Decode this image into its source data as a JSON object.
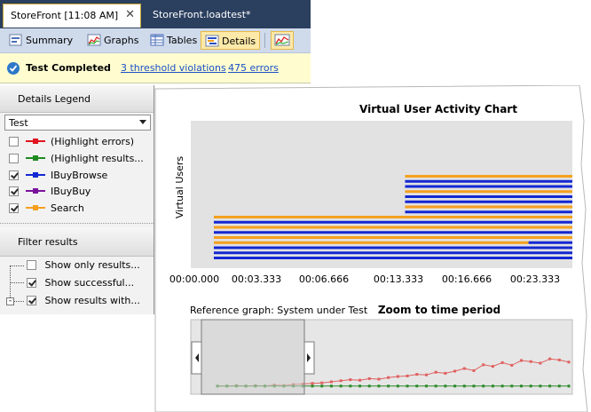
{
  "tabs": [
    {
      "label": "StoreFront [11:08 AM]",
      "close": "✕"
    },
    {
      "label": "StoreFront.loadtest*"
    }
  ],
  "toolbar": {
    "summary": "Summary",
    "graphs": "Graphs",
    "tables": "Tables",
    "details": "Details"
  },
  "status": {
    "completed": "Test Completed",
    "violations": "3 threshold violations",
    "errors": "475 errors"
  },
  "legend": {
    "title": "Details Legend",
    "combo_value": "Test",
    "items": [
      {
        "label": "(Highlight errors)",
        "checked": false,
        "color": "#e0141e"
      },
      {
        "label": "(Highlight results...",
        "checked": false,
        "color": "#1f8a1f"
      },
      {
        "label": "IBuyBrowse",
        "checked": true,
        "color": "#1428d2"
      },
      {
        "label": "IBuyBuy",
        "checked": true,
        "color": "#7a139c"
      },
      {
        "label": "Search",
        "checked": true,
        "color": "#f5a01e"
      }
    ]
  },
  "filter": {
    "title": "Filter results",
    "items": [
      {
        "label": "Show only results...",
        "checked": false
      },
      {
        "label": "Show successful...",
        "checked": true
      },
      {
        "label": "Show results with...",
        "checked": true
      }
    ]
  },
  "chart_data": [
    {
      "type": "timeline",
      "title": "Virtual User Activity Chart",
      "ylabel": "Virtual Users",
      "x_ticks": [
        "00:00.000",
        "00:03.333",
        "00:06.666",
        "00:13.333",
        "00:16.666",
        "00:23.333"
      ],
      "series_colors": {
        "IBuyBrowse": "#1428d2",
        "Search": "#f5a01e"
      },
      "bars": [
        {
          "user": 1,
          "start": 15.2,
          "segments": [
            "Search"
          ]
        },
        {
          "user": 2,
          "start": 15.2,
          "segments": [
            "IBuyBrowse"
          ]
        },
        {
          "user": 3,
          "start": 15.2,
          "segments": [
            "IBuyBrowse"
          ]
        },
        {
          "user": 4,
          "start": 15.2,
          "segments": [
            "Search"
          ]
        },
        {
          "user": 5,
          "start": 15.2,
          "segments": [
            "IBuyBrowse"
          ]
        },
        {
          "user": 6,
          "start": 15.2,
          "segments": [
            "IBuyBrowse"
          ]
        },
        {
          "user": 7,
          "start": 15.2,
          "segments": [
            "Search"
          ]
        },
        {
          "user": 8,
          "start": 15.2,
          "segments": [
            "IBuyBrowse"
          ]
        },
        {
          "user": 9,
          "start": 0.8,
          "segments": [
            "Search"
          ]
        },
        {
          "user": 10,
          "start": 0.8,
          "segments": [
            "IBuyBrowse"
          ]
        },
        {
          "user": 11,
          "start": 0.8,
          "segments": [
            "Search"
          ]
        },
        {
          "user": 12,
          "start": 0.8,
          "segments": [
            "IBuyBrowse"
          ]
        },
        {
          "user": 13,
          "start": 0.8,
          "segments": [
            "Search"
          ]
        },
        {
          "user": 14,
          "start": 0.8,
          "segments": [
            "Search",
            "IBuyBrowse"
          ],
          "switch_at": 24.5
        },
        {
          "user": 15,
          "start": 0.8,
          "segments": [
            "IBuyBrowse"
          ]
        },
        {
          "user": 16,
          "start": 0.8,
          "segments": [
            "IBuyBrowse"
          ]
        },
        {
          "user": 17,
          "start": 0.8,
          "segments": [
            "IBuyBrowse"
          ]
        }
      ],
      "x_range": [
        0,
        27.8
      ]
    },
    {
      "type": "line",
      "caption": "Reference graph: System under Test",
      "title": "Zoom to time period",
      "series": [
        {
          "color": "#e06060",
          "values": [
            0.12,
            0.12,
            0.13,
            0.12,
            0.13,
            0.12,
            0.14,
            0.13,
            0.15,
            0.16,
            0.17,
            0.18,
            0.2,
            0.22,
            0.24,
            0.23,
            0.26,
            0.25,
            0.28,
            0.3,
            0.31,
            0.34,
            0.33,
            0.38,
            0.36,
            0.4,
            0.45,
            0.41,
            0.52,
            0.49,
            0.56,
            0.51,
            0.6,
            0.58,
            0.55,
            0.63,
            0.61,
            0.57
          ]
        },
        {
          "color": "#2a8a2a",
          "values": [
            0.12,
            0.12,
            0.12,
            0.12,
            0.12,
            0.12,
            0.12,
            0.12,
            0.12,
            0.12,
            0.12,
            0.12,
            0.12,
            0.12,
            0.12,
            0.12,
            0.12,
            0.12,
            0.12,
            0.12,
            0.12,
            0.12,
            0.12,
            0.12,
            0.12,
            0.12,
            0.12,
            0.12,
            0.12,
            0.12,
            0.12,
            0.12,
            0.12,
            0.12,
            0.12,
            0.12,
            0.12,
            0.12
          ]
        }
      ]
    }
  ]
}
